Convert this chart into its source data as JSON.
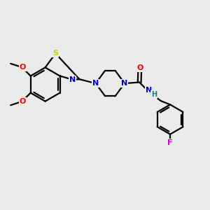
{
  "bg_color": "#ebebeb",
  "bond_color": "#000000",
  "bond_lw": 1.6,
  "atom_colors": {
    "S": "#cccc00",
    "N": "#0000cc",
    "O": "#ff0000",
    "F": "#cc00cc",
    "H": "#008888",
    "C": "#000000"
  },
  "font_size": 8.0,
  "xlim": [
    0,
    10
  ],
  "ylim": [
    0,
    10
  ]
}
